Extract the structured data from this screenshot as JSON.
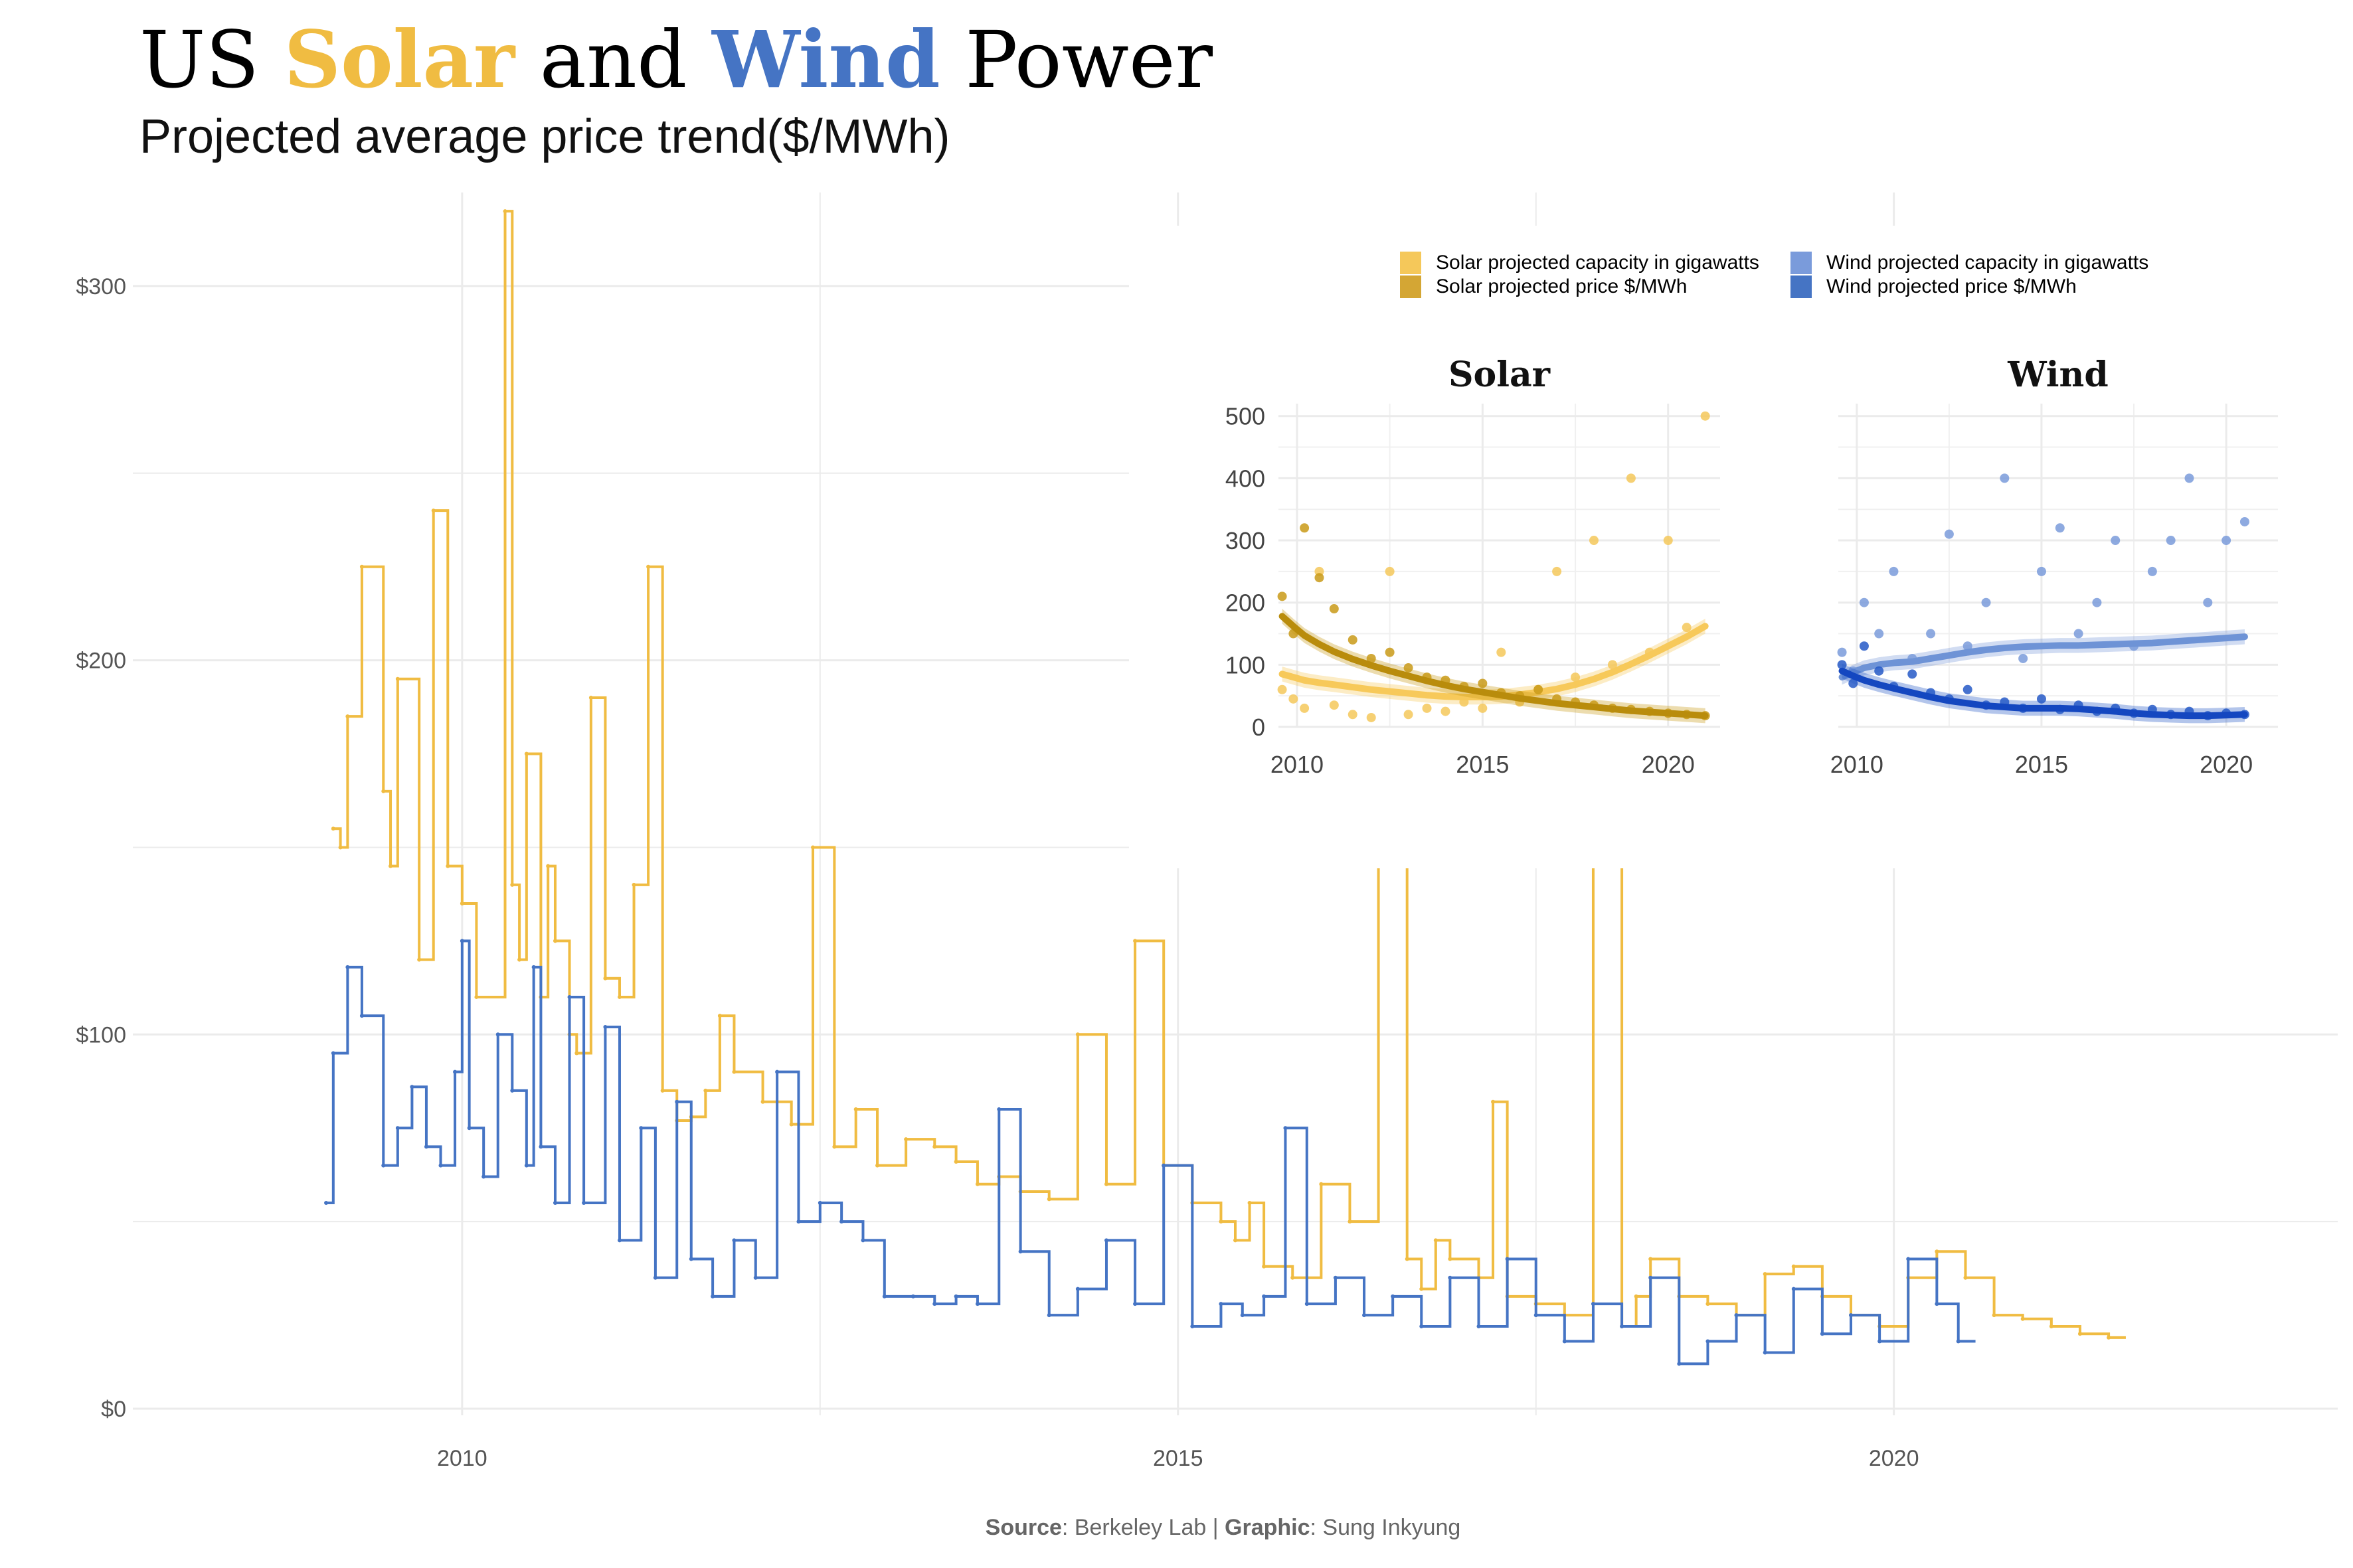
{
  "title": {
    "prefix": "US ",
    "solar": "Solar",
    "middle": " and ",
    "wind": "Wind",
    "suffix": " Power"
  },
  "subtitle": "Projected average price trend($/MWh)",
  "caption": {
    "source_label": "Source",
    "source_value": "Berkeley Lab",
    "separator": " | ",
    "graphic_label": "Graphic",
    "graphic_value": "Sung Inkyung"
  },
  "colors": {
    "solar": "#F0BC42",
    "wind": "#4574C4",
    "solar_dark": "#C99A17",
    "wind_dark": "#1447C0",
    "grid": "#EBEBEB"
  },
  "legend": {
    "solar_capacity": "Solar projected capacity in gigawatts",
    "solar_price": "Solar projected price $/MWh",
    "wind_capacity": "Wind projected capacity in gigawatts",
    "wind_price": "Wind projected price $/MWh"
  },
  "chart_data": [
    {
      "type": "line",
      "step": true,
      "title": "",
      "xlabel": "",
      "ylabel": "",
      "xlim": [
        2007.7,
        2023.1
      ],
      "ylim": [
        0,
        325
      ],
      "x_ticks": [
        2010,
        2015,
        2020
      ],
      "y_ticks": [
        0,
        100,
        200,
        300
      ],
      "y_tick_labels": [
        "$0",
        "$100",
        "$200",
        "$300"
      ],
      "grid": true,
      "series": [
        {
          "name": "Solar",
          "x": [
            2009.1,
            2009.15,
            2009.2,
            2009.3,
            2009.45,
            2009.5,
            2009.55,
            2009.7,
            2009.8,
            2009.9,
            2010.0,
            2010.1,
            2010.3,
            2010.35,
            2010.4,
            2010.45,
            2010.55,
            2010.6,
            2010.65,
            2010.75,
            2010.8,
            2010.9,
            2011.0,
            2011.1,
            2011.2,
            2011.3,
            2011.4,
            2011.5,
            2011.6,
            2011.7,
            2011.8,
            2011.9,
            2012.1,
            2012.3,
            2012.45,
            2012.6,
            2012.75,
            2012.9,
            2013.1,
            2013.3,
            2013.45,
            2013.6,
            2013.75,
            2013.9,
            2014.1,
            2014.3,
            2014.5,
            2014.7,
            2014.9,
            2015.1,
            2015.3,
            2015.4,
            2015.5,
            2015.6,
            2015.8,
            2016.0,
            2016.2,
            2016.4,
            2016.6,
            2016.7,
            2016.8,
            2016.9,
            2017.1,
            2017.2,
            2017.3,
            2017.5,
            2017.7,
            2017.9,
            2018.1,
            2018.2,
            2018.3,
            2018.5,
            2018.7,
            2018.9,
            2019.1,
            2019.3,
            2019.5,
            2019.7,
            2019.9,
            2020.1,
            2020.3,
            2020.5,
            2020.7,
            2020.9,
            2021.1,
            2021.3,
            2021.5
          ],
          "values": [
            155,
            150,
            185,
            225,
            165,
            145,
            195,
            120,
            240,
            145,
            135,
            110,
            320,
            140,
            120,
            175,
            110,
            145,
            125,
            100,
            95,
            190,
            115,
            110,
            140,
            225,
            85,
            77,
            78,
            85,
            105,
            90,
            82,
            76,
            150,
            70,
            80,
            65,
            72,
            70,
            66,
            60,
            62,
            58,
            56,
            100,
            60,
            125,
            65,
            55,
            50,
            45,
            55,
            38,
            35,
            60,
            50,
            150,
            40,
            32,
            45,
            40,
            35,
            82,
            30,
            28,
            25,
            150,
            22,
            30,
            40,
            30,
            28,
            25,
            36,
            38,
            30,
            25,
            22,
            35,
            42,
            35,
            25,
            24,
            22,
            20,
            19
          ]
        },
        {
          "name": "Wind",
          "x": [
            2009.05,
            2009.1,
            2009.2,
            2009.3,
            2009.45,
            2009.55,
            2009.65,
            2009.75,
            2009.85,
            2009.95,
            2010.0,
            2010.05,
            2010.15,
            2010.25,
            2010.35,
            2010.45,
            2010.5,
            2010.55,
            2010.65,
            2010.75,
            2010.85,
            2011.0,
            2011.1,
            2011.25,
            2011.35,
            2011.5,
            2011.6,
            2011.75,
            2011.9,
            2012.05,
            2012.2,
            2012.35,
            2012.5,
            2012.65,
            2012.8,
            2012.95,
            2013.15,
            2013.3,
            2013.45,
            2013.6,
            2013.75,
            2013.9,
            2014.1,
            2014.3,
            2014.5,
            2014.7,
            2014.9,
            2015.1,
            2015.3,
            2015.45,
            2015.6,
            2015.75,
            2015.9,
            2016.1,
            2016.3,
            2016.5,
            2016.7,
            2016.9,
            2017.1,
            2017.3,
            2017.5,
            2017.7,
            2017.9,
            2018.1,
            2018.3,
            2018.5,
            2018.7,
            2018.9,
            2019.1,
            2019.3,
            2019.5,
            2019.7,
            2019.9,
            2020.1,
            2020.3,
            2020.45
          ],
          "values": [
            55,
            95,
            118,
            105,
            65,
            75,
            86,
            70,
            65,
            90,
            125,
            75,
            62,
            100,
            85,
            65,
            118,
            70,
            55,
            110,
            55,
            102,
            45,
            75,
            35,
            82,
            40,
            30,
            45,
            35,
            90,
            50,
            55,
            50,
            45,
            30,
            30,
            28,
            30,
            28,
            80,
            42,
            25,
            32,
            45,
            28,
            65,
            22,
            28,
            25,
            30,
            75,
            28,
            35,
            25,
            30,
            22,
            35,
            22,
            40,
            25,
            18,
            28,
            22,
            35,
            12,
            18,
            25,
            15,
            32,
            20,
            25,
            18,
            40,
            28,
            18
          ]
        }
      ]
    },
    {
      "type": "scatter",
      "title": "Solar",
      "xlabel": "",
      "ylabel": "",
      "xlim": [
        2009.5,
        2021.4
      ],
      "ylim": [
        0,
        520
      ],
      "x_ticks": [
        2010,
        2015,
        2020
      ],
      "y_ticks": [
        0,
        100,
        200,
        300,
        400,
        500
      ],
      "grid": true,
      "series": [
        {
          "name": "Solar projected capacity in gigawatts",
          "x": [
            2009.6,
            2009.9,
            2010.2,
            2010.6,
            2011.0,
            2011.5,
            2012.0,
            2012.5,
            2013.0,
            2013.5,
            2014.0,
            2014.5,
            2015.0,
            2015.5,
            2016.0,
            2016.5,
            2017.0,
            2017.5,
            2018.0,
            2018.5,
            2019.0,
            2019.5,
            2020.0,
            2020.5,
            2021.0
          ],
          "values": [
            60,
            45,
            30,
            250,
            35,
            20,
            15,
            250,
            20,
            30,
            25,
            40,
            30,
            120,
            40,
            60,
            250,
            80,
            300,
            100,
            400,
            120,
            300,
            160,
            500
          ],
          "trend": [
            85,
            80,
            75,
            71,
            68,
            64,
            60,
            57,
            54,
            51,
            49,
            48,
            48,
            49,
            52,
            56,
            61,
            68,
            77,
            88,
            101,
            115,
            130,
            145,
            162
          ]
        },
        {
          "name": "Solar projected price $/MWh",
          "x": [
            2009.6,
            2009.9,
            2010.2,
            2010.6,
            2011.0,
            2011.5,
            2012.0,
            2012.5,
            2013.0,
            2013.5,
            2014.0,
            2014.5,
            2015.0,
            2015.5,
            2016.0,
            2016.5,
            2017.0,
            2017.5,
            2018.0,
            2018.5,
            2019.0,
            2019.5,
            2020.0,
            2020.5,
            2021.0
          ],
          "values": [
            210,
            150,
            320,
            240,
            190,
            140,
            110,
            120,
            95,
            80,
            75,
            65,
            70,
            55,
            50,
            60,
            45,
            40,
            35,
            30,
            28,
            25,
            22,
            20,
            18
          ],
          "trend": [
            178,
            162,
            147,
            133,
            121,
            109,
            99,
            90,
            82,
            74,
            67,
            61,
            56,
            51,
            46,
            42,
            38,
            35,
            32,
            29,
            26,
            24,
            22,
            20,
            18
          ]
        }
      ]
    },
    {
      "type": "scatter",
      "title": "Wind",
      "xlabel": "",
      "ylabel": "",
      "xlim": [
        2009.5,
        2021.4
      ],
      "ylim": [
        0,
        520
      ],
      "x_ticks": [
        2010,
        2015,
        2020
      ],
      "y_ticks": [
        0,
        100,
        200,
        300,
        400,
        500
      ],
      "grid": true,
      "series": [
        {
          "name": "Wind projected capacity in gigawatts",
          "x": [
            2009.6,
            2009.9,
            2010.2,
            2010.6,
            2011.0,
            2011.5,
            2012.0,
            2012.5,
            2013.0,
            2013.5,
            2014.0,
            2014.5,
            2015.0,
            2015.5,
            2016.0,
            2016.5,
            2017.0,
            2017.5,
            2018.0,
            2018.5,
            2019.0,
            2019.5,
            2020.0,
            2020.5
          ],
          "values": [
            120,
            90,
            200,
            150,
            250,
            110,
            150,
            310,
            130,
            200,
            400,
            110,
            250,
            320,
            150,
            200,
            300,
            130,
            250,
            300,
            400,
            200,
            300,
            330
          ],
          "trend": [
            80,
            88,
            95,
            100,
            103,
            105,
            110,
            115,
            120,
            124,
            127,
            129,
            130,
            131,
            131,
            132,
            133,
            134,
            135,
            137,
            139,
            141,
            143,
            145
          ]
        },
        {
          "name": "Wind projected price $/MWh",
          "x": [
            2009.6,
            2009.9,
            2010.2,
            2010.6,
            2011.0,
            2011.5,
            2012.0,
            2012.5,
            2013.0,
            2013.5,
            2014.0,
            2014.5,
            2015.0,
            2015.5,
            2016.0,
            2016.5,
            2017.0,
            2017.5,
            2018.0,
            2018.5,
            2019.0,
            2019.5,
            2020.0,
            2020.5
          ],
          "values": [
            100,
            70,
            130,
            90,
            65,
            85,
            55,
            45,
            60,
            35,
            40,
            30,
            45,
            28,
            35,
            25,
            30,
            22,
            28,
            20,
            25,
            18,
            22,
            20
          ],
          "trend": [
            90,
            82,
            75,
            68,
            62,
            55,
            48,
            42,
            38,
            34,
            32,
            30,
            30,
            30,
            29,
            27,
            25,
            22,
            20,
            19,
            18,
            18,
            19,
            20
          ]
        }
      ]
    }
  ]
}
